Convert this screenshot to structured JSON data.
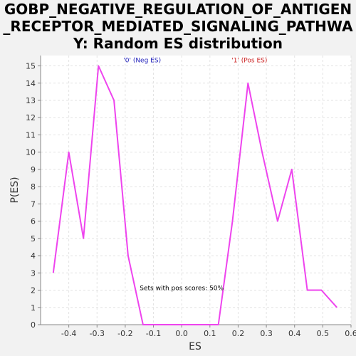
{
  "chart_data": {
    "type": "line",
    "title_lines": [
      "GOBP_NEGATIVE_REGULATION_OF_ANTIGEN",
      "_RECEPTOR_MEDIATED_SIGNALING_PATHWA",
      "Y: Random ES distribution"
    ],
    "xlabel": "ES",
    "ylabel": "P(ES)",
    "xlim": [
      -0.5,
      0.6
    ],
    "ylim": [
      0,
      15.6
    ],
    "xticks": [
      "-0.4",
      "-0.3",
      "-0.2",
      "-0.1",
      "0.0",
      "0.1",
      "0.2",
      "0.3",
      "0.4",
      "0.5",
      "0.6"
    ],
    "xtick_values": [
      -0.4,
      -0.3,
      -0.2,
      -0.1,
      0.0,
      0.1,
      0.2,
      0.3,
      0.4,
      0.5,
      0.6
    ],
    "yticks": [
      0,
      1,
      2,
      3,
      4,
      5,
      6,
      7,
      8,
      9,
      10,
      11,
      12,
      13,
      14,
      15
    ],
    "grid": true,
    "series": [
      {
        "color": "#ee44ee",
        "x": [
          -0.455,
          -0.4,
          -0.348,
          -0.295,
          -0.24,
          -0.19,
          -0.137,
          -0.08,
          0.0,
          0.08,
          0.13,
          0.18,
          0.235,
          0.285,
          0.34,
          0.39,
          0.445,
          0.495,
          0.55
        ],
        "y": [
          3,
          10,
          5,
          15,
          13,
          4,
          0,
          0,
          0,
          0,
          0,
          6,
          14,
          10,
          6,
          9,
          2,
          2,
          1
        ]
      }
    ],
    "annotations": [
      {
        "text": "'0' (Neg ES)",
        "x": -0.14,
        "y": 15.2,
        "color": "#2222bb"
      },
      {
        "text": "'1' (Pos ES)",
        "x": 0.24,
        "y": 15.2,
        "color": "#cc2222"
      },
      {
        "text": "Sets with pos scores: 50%",
        "x": 0.0,
        "y": 2.0,
        "color": "#000000"
      }
    ]
  }
}
